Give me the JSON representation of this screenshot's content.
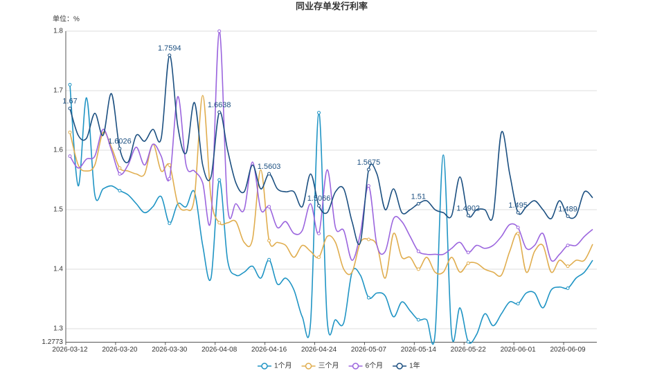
{
  "chart_data": {
    "type": "line",
    "title": "同业存单发行利率",
    "y_label": "单位：%",
    "categories": [
      "2026-03-12",
      null,
      null,
      null,
      null,
      null,
      "2026-03-20",
      null,
      null,
      null,
      null,
      null,
      "2026-03-30",
      null,
      null,
      null,
      null,
      null,
      "2026-04-08",
      null,
      null,
      null,
      null,
      null,
      "2026-04-16",
      null,
      null,
      null,
      null,
      null,
      "2026-04-24",
      null,
      null,
      null,
      null,
      null,
      "2026-05-07",
      null,
      null,
      null,
      null,
      null,
      "2026-05-14",
      null,
      null,
      null,
      null,
      null,
      "2026-05-22",
      null,
      null,
      null,
      null,
      null,
      "2026-06-01",
      null,
      null,
      null,
      null,
      null,
      "2026-06-09",
      null,
      null,
      null
    ],
    "ylim": [
      1.2773,
      1.8
    ],
    "yticks": [
      1.2773,
      1.3,
      1.4,
      1.5,
      1.6,
      1.7,
      1.8
    ],
    "grid": true,
    "smooth": true,
    "legend": "bottom",
    "series": [
      {
        "name": "1个月",
        "color": "#1f94c4",
        "values": [
          1.71,
          1.54,
          1.688,
          1.525,
          1.535,
          1.54,
          1.532,
          1.525,
          1.51,
          1.495,
          1.505,
          1.522,
          1.477,
          1.51,
          1.505,
          1.53,
          1.44,
          1.385,
          1.55,
          1.415,
          1.39,
          1.395,
          1.405,
          1.385,
          1.416,
          1.375,
          1.385,
          1.365,
          1.32,
          1.31,
          1.663,
          1.315,
          1.315,
          1.31,
          1.395,
          1.39,
          1.352,
          1.36,
          1.355,
          1.32,
          1.345,
          1.33,
          1.315,
          1.315,
          1.29,
          1.592,
          1.29,
          1.335,
          1.278,
          1.29,
          1.325,
          1.305,
          1.325,
          1.345,
          1.342,
          1.36,
          1.36,
          1.335,
          1.365,
          1.37,
          1.368,
          1.385,
          1.395,
          1.415
        ]
      },
      {
        "name": "三个月",
        "color": "#e0ad4e",
        "values": [
          1.63,
          1.575,
          1.565,
          1.575,
          1.63,
          1.605,
          1.57,
          1.565,
          1.56,
          1.56,
          1.61,
          1.565,
          1.575,
          1.51,
          1.5,
          1.52,
          1.692,
          1.52,
          1.478,
          1.478,
          1.48,
          1.445,
          1.45,
          1.567,
          1.448,
          1.445,
          1.44,
          1.42,
          1.44,
          1.43,
          1.42,
          1.455,
          1.445,
          1.4,
          1.395,
          1.445,
          1.45,
          1.44,
          1.385,
          1.46,
          1.42,
          1.42,
          1.4,
          1.42,
          1.395,
          1.395,
          1.42,
          1.395,
          1.41,
          1.41,
          1.4,
          1.395,
          1.39,
          1.43,
          1.46,
          1.395,
          1.43,
          1.44,
          1.395,
          1.415,
          1.405,
          1.415,
          1.415,
          1.442
        ]
      },
      {
        "name": "6个月",
        "color": "#9b65de",
        "values": [
          1.59,
          1.57,
          1.585,
          1.59,
          1.635,
          1.6,
          1.56,
          1.575,
          1.605,
          1.575,
          1.61,
          1.59,
          1.552,
          1.69,
          1.575,
          1.565,
          1.545,
          1.485,
          1.8,
          1.505,
          1.51,
          1.5,
          1.58,
          1.5,
          1.505,
          1.47,
          1.48,
          1.46,
          1.465,
          1.51,
          1.46,
          1.567,
          1.47,
          1.465,
          1.415,
          1.46,
          1.54,
          1.44,
          1.43,
          1.485,
          1.48,
          1.455,
          1.43,
          1.425,
          1.425,
          1.425,
          1.435,
          1.445,
          1.428,
          1.44,
          1.435,
          1.44,
          1.455,
          1.475,
          1.47,
          1.435,
          1.44,
          1.46,
          1.415,
          1.425,
          1.44,
          1.44,
          1.455,
          1.467
        ]
      },
      {
        "name": "1年",
        "color": "#1b4f80",
        "show_labels": true,
        "values": [
          1.67,
          1.625,
          1.62,
          1.662,
          1.625,
          1.695,
          1.6026,
          1.58,
          1.625,
          1.615,
          1.635,
          1.62,
          1.7594,
          1.64,
          1.595,
          1.68,
          1.575,
          1.555,
          1.6638,
          1.6,
          1.545,
          1.53,
          1.575,
          1.535,
          1.5603,
          1.535,
          1.53,
          1.53,
          1.505,
          1.56,
          1.5066,
          1.495,
          1.53,
          1.535,
          1.48,
          1.445,
          1.5675,
          1.56,
          1.5,
          1.535,
          1.495,
          1.5,
          1.51,
          1.515,
          1.5,
          1.495,
          1.49,
          1.555,
          1.4902,
          1.5,
          1.5,
          1.49,
          1.63,
          1.56,
          1.495,
          1.505,
          1.515,
          1.5,
          1.485,
          1.515,
          1.489,
          1.49,
          1.53,
          1.52
        ]
      }
    ]
  }
}
